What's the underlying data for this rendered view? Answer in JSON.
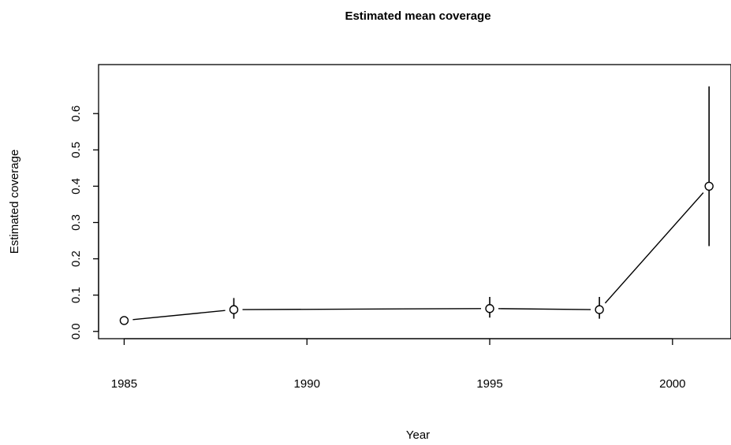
{
  "chart_data": {
    "type": "scatter",
    "title": "Estimated mean coverage",
    "xlabel": "Year",
    "ylabel": "Estimated coverage",
    "xlim": [
      1984.3,
      2001.6
    ],
    "ylim": [
      -0.02,
      0.735
    ],
    "x_ticks": [
      1985,
      1990,
      1995,
      2000
    ],
    "y_ticks": [
      0.0,
      0.1,
      0.2,
      0.3,
      0.4,
      0.5,
      0.6
    ],
    "grid": false,
    "legend": "none",
    "points": [
      {
        "x": 1985,
        "y": 0.03,
        "lower": 0.03,
        "upper": 0.03
      },
      {
        "x": 1988,
        "y": 0.06,
        "lower": 0.035,
        "upper": 0.092
      },
      {
        "x": 1995,
        "y": 0.063,
        "lower": 0.038,
        "upper": 0.095
      },
      {
        "x": 1998,
        "y": 0.06,
        "lower": 0.035,
        "upper": 0.095
      },
      {
        "x": 2001,
        "y": 0.4,
        "lower": 0.235,
        "upper": 0.675
      }
    ]
  }
}
